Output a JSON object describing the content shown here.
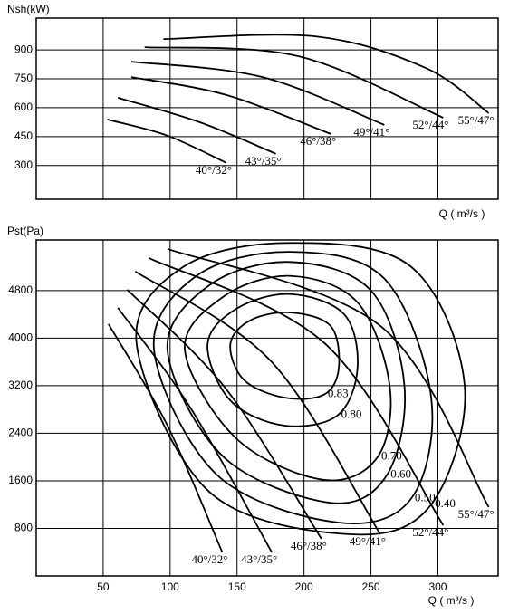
{
  "chart_data": [
    {
      "type": "line",
      "y_label": "Nsh(kW)",
      "x_label": "Q ( m³/s )",
      "color": "#000000",
      "xlim": [
        0,
        345
      ],
      "ylim": [
        125,
        1065
      ],
      "yticks": [
        300,
        450,
        600,
        750,
        900
      ],
      "grid": true,
      "series": [
        {
          "name": "40°/32°",
          "x": [
            53,
            98,
            142
          ],
          "values": [
            539,
            455,
            314
          ]
        },
        {
          "name": "43°/35°",
          "x": [
            61,
            122,
            179
          ],
          "values": [
            652,
            525,
            361
          ]
        },
        {
          "name": "46°/38°",
          "x": [
            71,
            142,
            220
          ],
          "values": [
            759,
            666,
            464
          ]
        },
        {
          "name": "49°/41°",
          "x": [
            71,
            169,
            260
          ],
          "values": [
            839,
            759,
            511
          ]
        },
        {
          "name": "52°/44°",
          "x": [
            81,
            196,
            304
          ],
          "values": [
            914,
            867,
            548
          ]
        },
        {
          "name": "55°/47°",
          "x": [
            95,
            209,
            291,
            338
          ],
          "values": [
            956,
            970,
            806,
            572
          ]
        }
      ]
    },
    {
      "type": "line",
      "y_label": "Pst(Pa)",
      "x_label": "Q ( m³/s )",
      "color": "#000000",
      "xlim": [
        0,
        345
      ],
      "ylim": [
        0,
        5650
      ],
      "xticks": [
        50,
        100,
        150,
        200,
        250,
        300
      ],
      "yticks": [
        800,
        1600,
        2400,
        3200,
        4000,
        4800
      ],
      "grid": true,
      "series": [
        {
          "name": "40°/32°",
          "x": [
            54,
            98,
            139
          ],
          "values": [
            4236,
            2530,
            396
          ]
        },
        {
          "name": "43°/35°",
          "x": [
            61,
            115,
            176
          ],
          "values": [
            4510,
            2834,
            396
          ]
        },
        {
          "name": "46°/38°",
          "x": [
            68,
            142,
            213
          ],
          "values": [
            4815,
            3139,
            625
          ]
        },
        {
          "name": "49°/41°",
          "x": [
            74,
            176,
            257
          ],
          "values": [
            5120,
            3596,
            701
          ]
        },
        {
          "name": "52°/44°",
          "x": [
            84,
            216,
            304
          ],
          "values": [
            5349,
            3901,
            853
          ]
        },
        {
          "name": "55°/47°",
          "x": [
            98,
            257,
            338
          ],
          "values": [
            5501,
            4206,
            1158
          ]
        }
      ],
      "contours": [
        {
          "name": "0.83",
          "x": [
            145,
            160,
            190,
            220,
            226,
            215,
            185,
            155
          ],
          "values": [
            3900,
            4300,
            4430,
            4200,
            3500,
            3050,
            3000,
            3300
          ]
        },
        {
          "name": "0.80",
          "x": [
            128,
            150,
            190,
            230,
            240,
            225,
            185,
            145
          ],
          "values": [
            3900,
            4500,
            4740,
            4400,
            3500,
            2700,
            2530,
            2950
          ]
        },
        {
          "name": "0.70",
          "x": [
            111,
            140,
            190,
            240,
            264,
            255,
            215,
            150
          ],
          "values": [
            3800,
            4700,
            5045,
            4600,
            3200,
            2000,
            1615,
            2300
          ]
        },
        {
          "name": "0.60",
          "x": [
            98,
            130,
            190,
            250,
            275,
            262,
            220,
            140
          ],
          "values": [
            3800,
            4900,
            5280,
            4800,
            3200,
            1700,
            1230,
            2000
          ]
        },
        {
          "name": "0.50",
          "x": [
            88,
            120,
            190,
            260,
            295,
            280,
            225,
            135
          ],
          "values": [
            3800,
            5050,
            5450,
            5000,
            3000,
            1300,
            900,
            1700
          ]
        },
        {
          "name": "0.40",
          "x": [
            75,
            110,
            190,
            280,
            320,
            295,
            235,
            130
          ],
          "values": [
            3900,
            5200,
            5600,
            5200,
            3200,
            1200,
            700,
            1400
          ]
        }
      ]
    }
  ]
}
